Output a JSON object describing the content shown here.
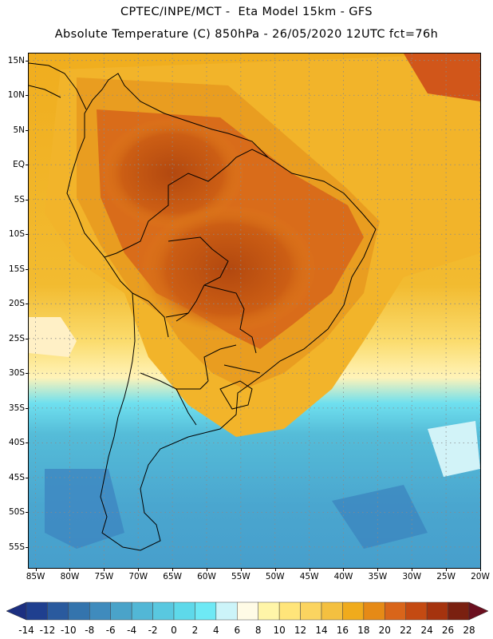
{
  "header": {
    "title_line1": "CPTEC/INPE/MCT -  Eta Model 15km - GFS",
    "title_line2": "Absolute Temperature (C) 850hPa - 26/05/2020 12UTC fct=76h"
  },
  "map": {
    "lat_labels": [
      "15N",
      "10N",
      "5N",
      "EQ",
      "5S",
      "10S",
      "15S",
      "20S",
      "25S",
      "30S",
      "35S",
      "40S",
      "45S",
      "50S",
      "55S"
    ],
    "lat_values": [
      15,
      10,
      5,
      0,
      -5,
      -10,
      -15,
      -20,
      -25,
      -30,
      -35,
      -40,
      -45,
      -50,
      -55
    ],
    "lon_labels": [
      "85W",
      "80W",
      "75W",
      "70W",
      "65W",
      "60W",
      "55W",
      "50W",
      "45W",
      "40W",
      "35W",
      "30W",
      "25W",
      "20W"
    ],
    "lon_values": [
      -85,
      -80,
      -75,
      -70,
      -65,
      -60,
      -55,
      -50,
      -45,
      -40,
      -35,
      -30,
      -25,
      -20
    ],
    "lat_range": [
      -58,
      16
    ],
    "lon_range": [
      -86,
      -20
    ]
  },
  "colorbar": {
    "labels": [
      "-14",
      "-12",
      "-10",
      "-8",
      "-6",
      "-4",
      "-2",
      "0",
      "2",
      "4",
      "6",
      "8",
      "10",
      "12",
      "14",
      "16",
      "18",
      "20",
      "22",
      "24",
      "26",
      "28"
    ],
    "colors": [
      "#1f3f8f",
      "#2a5a9e",
      "#3474ad",
      "#3f8bbd",
      "#4aa3c9",
      "#52b7d6",
      "#59c8e0",
      "#5ed9ea",
      "#6ee9f5",
      "#ccf4f9",
      "#fffbe6",
      "#fff5a8",
      "#ffe57a",
      "#fbd460",
      "#f4c040",
      "#f0ab1c",
      "#e68a16",
      "#d9651a",
      "#c44a12",
      "#a5330e",
      "#7a2010"
    ],
    "low_color": "#1c2f80",
    "high_color": "#6b0f1f"
  }
}
